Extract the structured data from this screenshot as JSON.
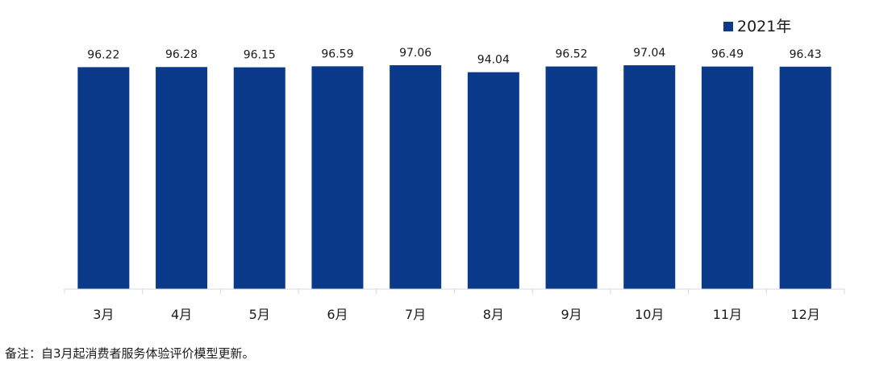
{
  "chart_data": {
    "type": "bar",
    "categories": [
      "3月",
      "4月",
      "5月",
      "6月",
      "7月",
      "8月",
      "9月",
      "10月",
      "11月",
      "12月"
    ],
    "series": [
      {
        "name": "2021年",
        "values": [
          96.22,
          96.28,
          96.15,
          96.59,
          97.06,
          94.04,
          96.52,
          97.04,
          96.49,
          96.43
        ],
        "color": "#0b3a8a"
      }
    ],
    "title": "",
    "xlabel": "",
    "ylabel": "",
    "ylim": [
      0,
      97.06
    ],
    "grid": false,
    "legend": "top-right",
    "data_labels": true
  },
  "note": "备注：自3月起消费者服务体验评价模型更新。"
}
